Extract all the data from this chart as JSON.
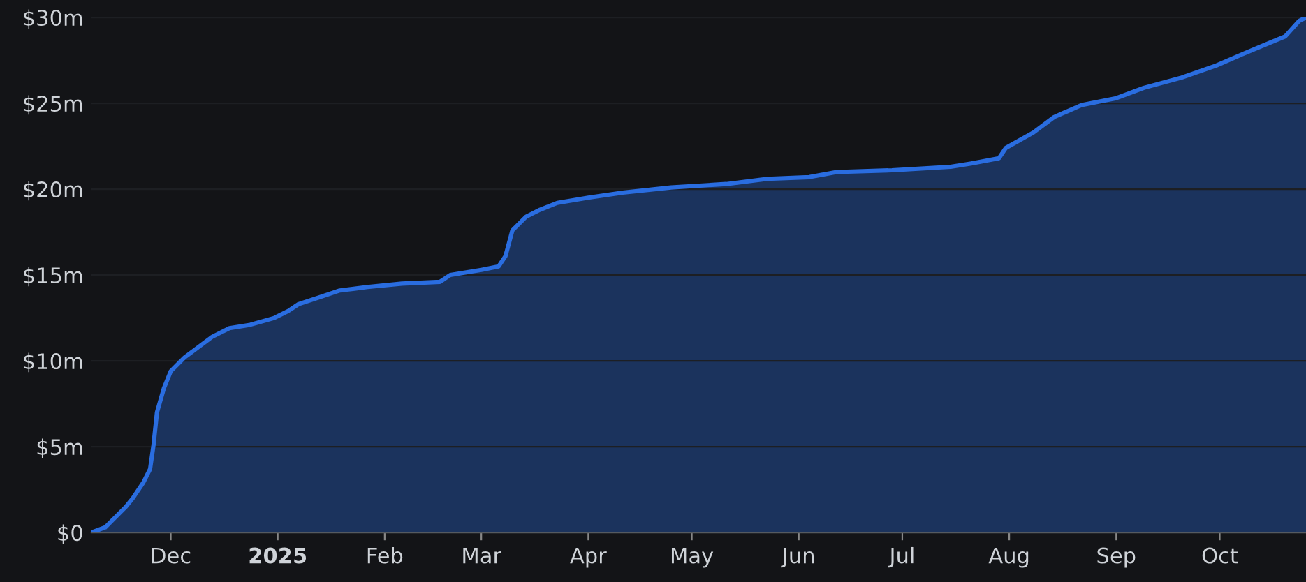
{
  "chart_data": {
    "type": "area",
    "color": "#2a6de0",
    "grid": "y",
    "xlim": [
      "2024-11-08",
      "2025-10-26"
    ],
    "ylim": [
      0,
      30
    ],
    "yticks": [
      {
        "value": 0,
        "label": "$0"
      },
      {
        "value": 5,
        "label": "$5m"
      },
      {
        "value": 10,
        "label": "$10m"
      },
      {
        "value": 15,
        "label": "$15m"
      },
      {
        "value": 20,
        "label": "$20m"
      },
      {
        "value": 25,
        "label": "$25m"
      },
      {
        "value": 30,
        "label": "$30m"
      }
    ],
    "xticks": [
      {
        "value": "2024-12-01",
        "label": "Dec"
      },
      {
        "value": "2025-01-01",
        "label": "2025"
      },
      {
        "value": "2025-02-01",
        "label": "Feb"
      },
      {
        "value": "2025-03-01",
        "label": "Mar"
      },
      {
        "value": "2025-04-01",
        "label": "Apr"
      },
      {
        "value": "2025-05-01",
        "label": "May"
      },
      {
        "value": "2025-06-01",
        "label": "Jun"
      },
      {
        "value": "2025-07-01",
        "label": "Jul"
      },
      {
        "value": "2025-08-01",
        "label": "Aug"
      },
      {
        "value": "2025-09-01",
        "label": "Sep"
      },
      {
        "value": "2025-10-01",
        "label": "Oct"
      }
    ],
    "x": [
      "2024-11-08",
      "2024-11-12",
      "2024-11-14",
      "2024-11-18",
      "2024-11-20",
      "2024-11-23",
      "2024-11-25",
      "2024-11-26",
      "2024-11-27",
      "2024-11-29",
      "2024-12-01",
      "2024-12-05",
      "2024-12-09",
      "2024-12-13",
      "2024-12-18",
      "2024-12-24",
      "2024-12-31",
      "2025-01-04",
      "2025-01-07",
      "2025-01-13",
      "2025-01-19",
      "2025-01-27",
      "2025-02-06",
      "2025-02-17",
      "2025-02-20",
      "2025-03-01",
      "2025-03-06",
      "2025-03-08",
      "2025-03-10",
      "2025-03-14",
      "2025-03-18",
      "2025-03-23",
      "2025-04-01",
      "2025-04-11",
      "2025-04-25",
      "2025-05-11",
      "2025-05-23",
      "2025-06-04",
      "2025-06-12",
      "2025-06-28",
      "2025-07-15",
      "2025-07-21",
      "2025-07-29",
      "2025-07-31",
      "2025-08-08",
      "2025-08-14",
      "2025-08-22",
      "2025-09-01",
      "2025-09-09",
      "2025-09-20",
      "2025-09-30",
      "2025-10-08",
      "2025-10-14",
      "2025-10-20",
      "2025-10-24",
      "2025-10-26"
    ],
    "values": [
      0,
      0.3,
      0.7,
      1.5,
      2.0,
      2.9,
      3.7,
      5.1,
      7.0,
      8.4,
      9.4,
      10.2,
      10.8,
      11.4,
      11.9,
      12.1,
      12.5,
      12.9,
      13.3,
      13.7,
      14.1,
      14.3,
      14.5,
      14.6,
      15.0,
      15.3,
      15.5,
      16.1,
      17.6,
      18.4,
      18.8,
      19.2,
      19.5,
      19.8,
      20.1,
      20.3,
      20.6,
      20.7,
      21.0,
      21.1,
      21.3,
      21.5,
      21.8,
      22.4,
      23.3,
      24.2,
      24.9,
      25.3,
      25.9,
      26.5,
      27.2,
      27.9,
      28.4,
      28.9,
      29.8,
      30.0
    ]
  }
}
